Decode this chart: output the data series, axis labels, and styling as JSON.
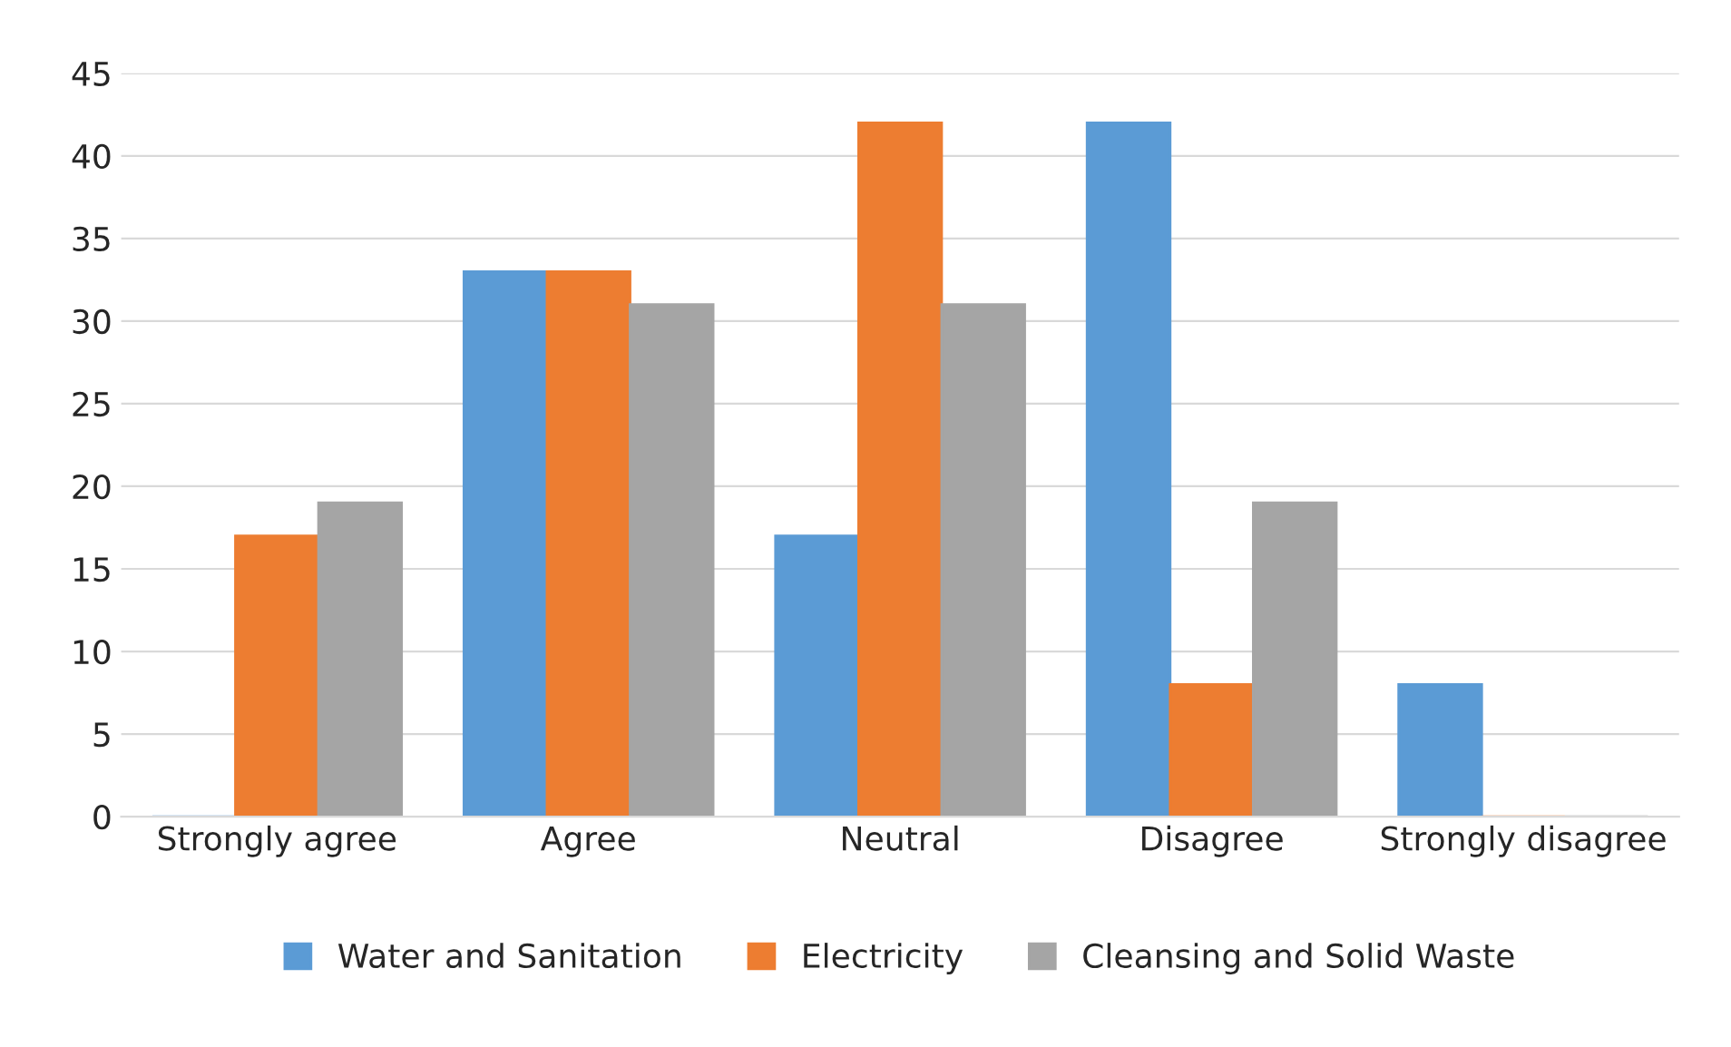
{
  "chart_data": {
    "type": "bar",
    "categories": [
      "Strongly agree",
      "Agree",
      "Neutral",
      "Disagree",
      "Strongly disagree"
    ],
    "series": [
      {
        "name": "Water and Sanitation",
        "color": "#5b9bd5",
        "values": [
          0,
          33,
          17,
          42,
          8
        ]
      },
      {
        "name": "Electricity",
        "color": "#ed7d31",
        "values": [
          17,
          33,
          42,
          8,
          0
        ]
      },
      {
        "name": "Cleansing and Solid Waste",
        "color": "#a5a5a5",
        "values": [
          19,
          31,
          31,
          19,
          0
        ]
      }
    ],
    "ylim": [
      0,
      45
    ],
    "yticks": [
      0,
      5,
      10,
      15,
      20,
      25,
      30,
      35,
      40,
      45
    ],
    "grid": "y",
    "legend": "bottom"
  }
}
